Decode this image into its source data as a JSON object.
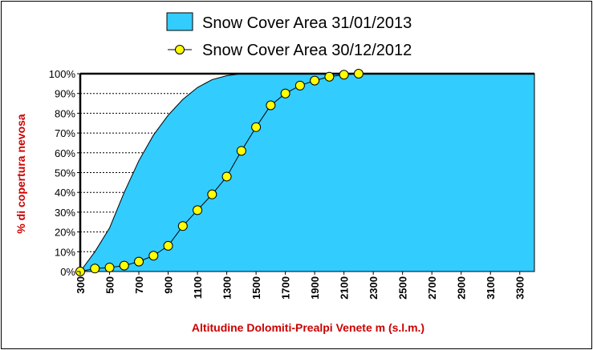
{
  "chart_data": {
    "type": "area",
    "xlabel": "Altitudine Dolomiti-Prealpi Venete m (s.l.m.)",
    "ylabel": "% di copertura nevosa",
    "xlim": [
      300,
      3400
    ],
    "ylim": [
      0,
      100
    ],
    "x_ticks": [
      "300",
      "500",
      "700",
      "900",
      "1100",
      "1300",
      "1500",
      "1700",
      "1900",
      "2100",
      "2300",
      "2500",
      "2700",
      "2900",
      "3100",
      "3300"
    ],
    "y_ticks": [
      "0%",
      "10%",
      "20%",
      "30%",
      "40%",
      "50%",
      "60%",
      "70%",
      "80%",
      "90%",
      "100%"
    ],
    "grid": "horizontal dashed",
    "legend_position": "top",
    "series": [
      {
        "name": "Snow Cover Area 31/01/2013",
        "kind": "area",
        "color": "#33ccff",
        "x": [
          300,
          400,
          500,
          600,
          700,
          800,
          900,
          1000,
          1100,
          1200,
          1300,
          1400,
          1500,
          1600,
          1700,
          1800,
          1900,
          2000,
          2100,
          2200,
          2300,
          2400,
          2500,
          2600,
          2700,
          2800,
          2900,
          3000,
          3100,
          3200,
          3300,
          3400
        ],
        "y": [
          0,
          10,
          22,
          40,
          56,
          69,
          79,
          87,
          93,
          97,
          99,
          100,
          100,
          100,
          100,
          100,
          100,
          100,
          100,
          100,
          100,
          100,
          100,
          100,
          100,
          100,
          100,
          100,
          100,
          100,
          100,
          100
        ]
      },
      {
        "name": "Snow Cover Area 30/12/2012",
        "kind": "line-marker",
        "color": "#ffff00",
        "x": [
          300,
          400,
          500,
          600,
          700,
          800,
          900,
          1000,
          1100,
          1200,
          1300,
          1400,
          1500,
          1600,
          1700,
          1800,
          1900,
          2000,
          2100,
          2200
        ],
        "y": [
          0,
          1.5,
          2,
          3,
          5,
          8,
          13,
          23,
          31,
          39,
          48,
          61,
          73,
          84,
          90,
          94,
          96.5,
          98.5,
          99.5,
          100
        ]
      }
    ]
  }
}
